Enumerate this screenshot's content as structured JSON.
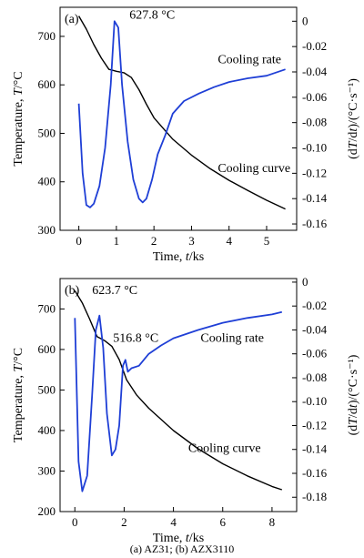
{
  "caption": "(a) AZ31; (b) AZX3110",
  "colors": {
    "cooling_rate": "#1f3fd6",
    "cooling_curve": "#000000",
    "axes": "#000000"
  },
  "chart_data": [
    {
      "type": "line",
      "panel_label": "(a)",
      "xlabel": "Time, t/ks",
      "ylabel": "Temperature, T/°C",
      "y2label": "(dT/dt)/(°C·s⁻¹)",
      "xlim": [
        -0.5,
        5.8
      ],
      "ylim": [
        300,
        760
      ],
      "y2lim": [
        -0.165,
        0.011
      ],
      "xticks": [
        0,
        1,
        2,
        3,
        4,
        5
      ],
      "xtick_labels": [
        "0",
        "1",
        "2",
        "3",
        "4",
        "5"
      ],
      "yticks": [
        300,
        400,
        500,
        600,
        700
      ],
      "ytick_labels": [
        "300",
        "400",
        "500",
        "600",
        "700"
      ],
      "y2ticks": [
        0,
        -0.02,
        -0.04,
        -0.06,
        -0.08,
        -0.1,
        -0.12,
        -0.14,
        -0.16
      ],
      "y2tick_labels": [
        "0",
        "-0.02",
        "-0.04",
        "-0.06",
        "-0.08",
        "-0.10",
        "-0.12",
        "-0.14",
        "-0.16"
      ],
      "annotations": {
        "peak": "627.8 °C",
        "rate_label": "Cooling rate",
        "curve_label": "Cooling curve"
      },
      "series": [
        {
          "name": "Cooling curve",
          "axis": "left",
          "color": "#000000",
          "x": [
            0,
            0.2,
            0.4,
            0.6,
            0.8,
            0.9,
            1.0,
            1.2,
            1.4,
            1.6,
            1.8,
            2.0,
            2.5,
            3.0,
            3.5,
            4.0,
            4.5,
            5.0,
            5.5
          ],
          "y": [
            742,
            715,
            683,
            655,
            632,
            630,
            628,
            625,
            615,
            590,
            560,
            532,
            488,
            455,
            427,
            403,
            382,
            362,
            344
          ]
        },
        {
          "name": "Cooling rate",
          "axis": "right",
          "color": "#1f3fd6",
          "x": [
            0.0,
            0.1,
            0.2,
            0.3,
            0.4,
            0.55,
            0.7,
            0.85,
            0.95,
            1.05,
            1.15,
            1.3,
            1.45,
            1.6,
            1.7,
            1.8,
            1.95,
            2.1,
            2.3,
            2.5,
            2.8,
            3.2,
            3.6,
            4.0,
            4.5,
            5.0,
            5.5
          ],
          "y": [
            -0.065,
            -0.12,
            -0.145,
            -0.147,
            -0.144,
            -0.13,
            -0.1,
            -0.05,
            0.0,
            -0.005,
            -0.05,
            -0.095,
            -0.125,
            -0.14,
            -0.143,
            -0.14,
            -0.125,
            -0.105,
            -0.09,
            -0.073,
            -0.063,
            -0.057,
            -0.052,
            -0.048,
            -0.045,
            -0.043,
            -0.038
          ]
        }
      ]
    },
    {
      "type": "line",
      "panel_label": "(b)",
      "xlabel": "Time, t/ks",
      "ylabel": "Temperature, T/°C",
      "y2label": "(dT/dt)/(°C·s⁻¹)",
      "xlim": [
        -0.6,
        9.0
      ],
      "ylim": [
        200,
        775
      ],
      "y2lim": [
        -0.192,
        0.003
      ],
      "xticks": [
        0,
        2,
        4,
        6,
        8
      ],
      "xtick_labels": [
        "0",
        "2",
        "4",
        "6",
        "8"
      ],
      "yticks": [
        200,
        300,
        400,
        500,
        600,
        700
      ],
      "ytick_labels": [
        "200",
        "300",
        "400",
        "500",
        "600",
        "700"
      ],
      "y2ticks": [
        0,
        -0.02,
        -0.04,
        -0.06,
        -0.08,
        -0.1,
        -0.12,
        -0.14,
        -0.16,
        -0.18
      ],
      "y2tick_labels": [
        "0",
        "-0.02",
        "-0.04",
        "-0.06",
        "-0.08",
        "-0.10",
        "-0.12",
        "-0.14",
        "-0.16",
        "-0.18"
      ],
      "annotations": {
        "peak1": "623.7 °C",
        "peak2": "516.8 °C",
        "rate_label": "Cooling rate",
        "curve_label": "Cooling curve"
      },
      "series": [
        {
          "name": "Cooling curve",
          "axis": "left",
          "color": "#000000",
          "x": [
            0,
            0.3,
            0.6,
            0.9,
            1.2,
            1.5,
            1.8,
            2.1,
            2.5,
            3,
            4,
            5,
            6,
            7,
            8,
            8.4
          ],
          "y": [
            745,
            715,
            675,
            632,
            622,
            608,
            575,
            525,
            488,
            455,
            400,
            355,
            318,
            288,
            262,
            254
          ]
        },
        {
          "name": "Cooling rate",
          "axis": "right",
          "color": "#1f3fd6",
          "x": [
            0.0,
            0.15,
            0.3,
            0.5,
            0.7,
            0.85,
            1.0,
            1.15,
            1.3,
            1.5,
            1.65,
            1.8,
            1.95,
            2.05,
            2.15,
            2.3,
            2.6,
            3.0,
            3.5,
            4.0,
            5.0,
            6.0,
            7.0,
            8.0,
            8.4
          ],
          "y": [
            -0.03,
            -0.15,
            -0.175,
            -0.162,
            -0.095,
            -0.04,
            -0.028,
            -0.055,
            -0.11,
            -0.145,
            -0.14,
            -0.12,
            -0.07,
            -0.065,
            -0.075,
            -0.072,
            -0.07,
            -0.06,
            -0.053,
            -0.047,
            -0.04,
            -0.034,
            -0.03,
            -0.027,
            -0.025
          ]
        }
      ]
    }
  ]
}
